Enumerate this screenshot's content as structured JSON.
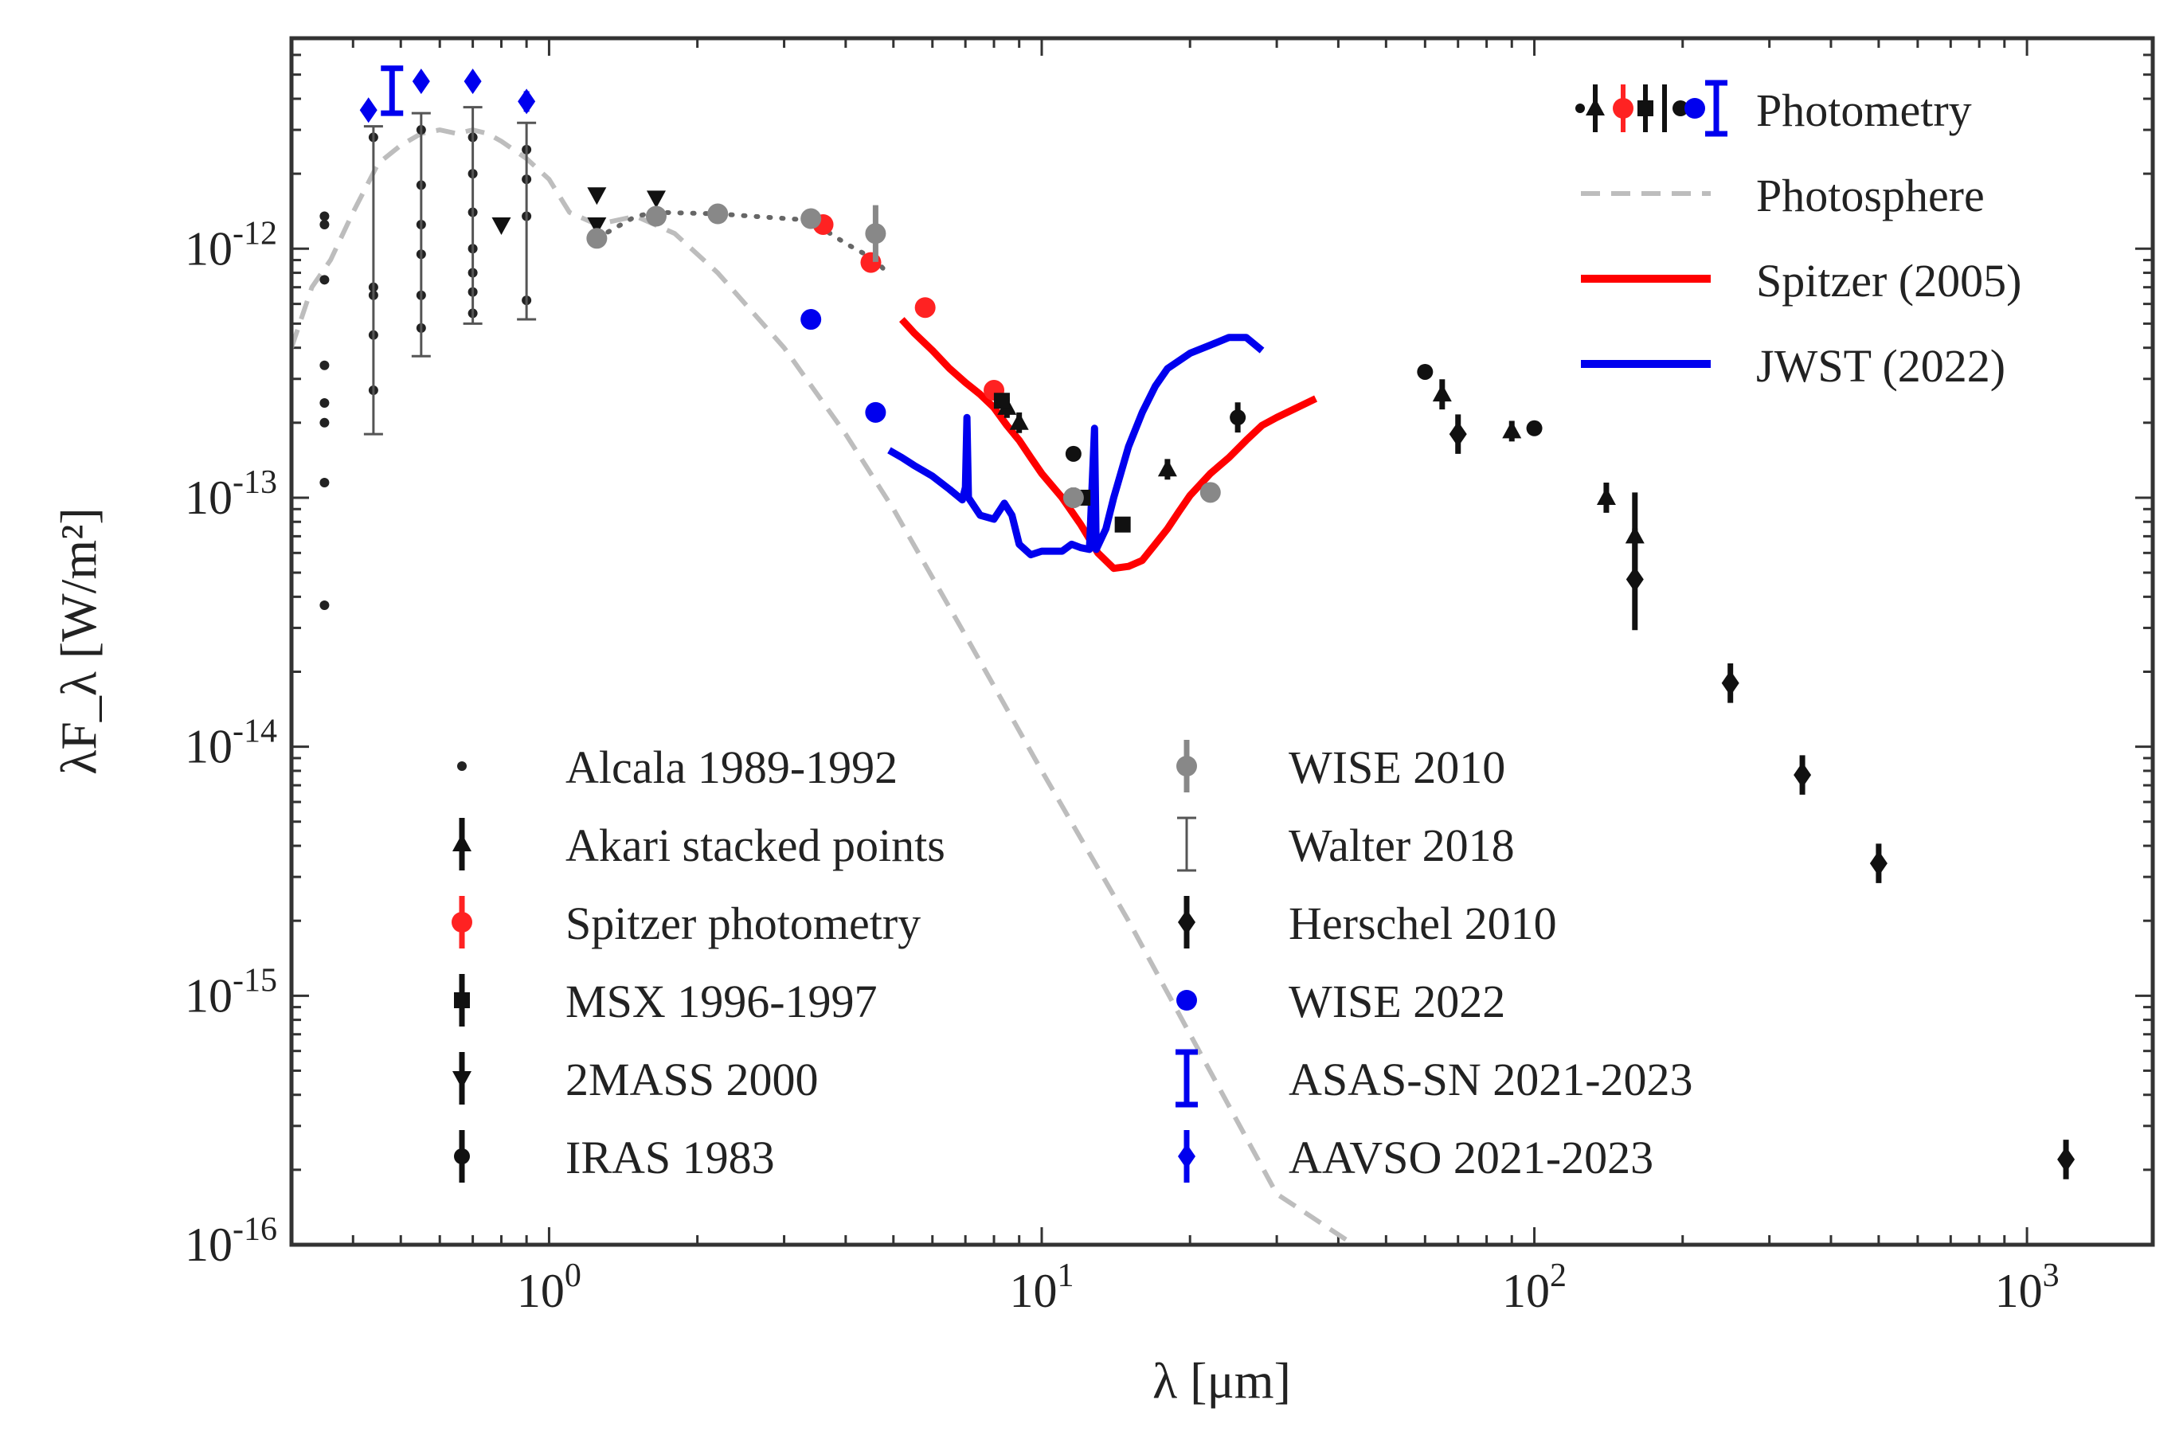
{
  "chart_data": {
    "type": "scatter",
    "xlabel": "λ [μm]",
    "ylabel": "λF_λ [W/m²]",
    "xscale": "log",
    "yscale": "log",
    "xlim": [
      0.3,
      1800
    ],
    "ylim": [
      1e-16,
      7e-12
    ],
    "x_ticks": [
      {
        "value": 1,
        "base": "10",
        "exp": "0"
      },
      {
        "value": 10,
        "base": "10",
        "exp": "1"
      },
      {
        "value": 100,
        "base": "10",
        "exp": "2"
      },
      {
        "value": 1000,
        "base": "10",
        "exp": "3"
      }
    ],
    "y_ticks": [
      {
        "value": 1e-16,
        "base": "10",
        "exp": "-16"
      },
      {
        "value": 1e-15,
        "base": "10",
        "exp": "-15"
      },
      {
        "value": 1e-14,
        "base": "10",
        "exp": "-14"
      },
      {
        "value": 1e-13,
        "base": "10",
        "exp": "-13"
      },
      {
        "value": 1e-12,
        "base": "10",
        "exp": "-12"
      }
    ],
    "upper_legend": [
      {
        "label": "Photometry",
        "style": "photometry"
      },
      {
        "label": "Photosphere",
        "color": "#bdbdbd",
        "style": "dashed"
      },
      {
        "label": "Spitzer (2005)",
        "color": "#ff0000",
        "style": "solid"
      },
      {
        "label": "JWST (2022)",
        "color": "#0000ee",
        "style": "solid"
      }
    ],
    "lines": [
      {
        "name": "Photosphere",
        "color": "#bdbdbd",
        "dash": "dashed",
        "points": [
          [
            0.3,
            4e-13
          ],
          [
            0.33,
            7e-13
          ],
          [
            0.36,
            9e-13
          ],
          [
            0.4,
            1.4e-12
          ],
          [
            0.45,
            2.2e-12
          ],
          [
            0.5,
            2.6e-12
          ],
          [
            0.55,
            2.9e-12
          ],
          [
            0.6,
            3e-12
          ],
          [
            0.65,
            2.9e-12
          ],
          [
            0.7,
            3e-12
          ],
          [
            0.75,
            2.9e-12
          ],
          [
            0.8,
            2.7e-12
          ],
          [
            0.9,
            2.3e-12
          ],
          [
            1.0,
            1.9e-12
          ],
          [
            1.1,
            1.4e-12
          ],
          [
            1.25,
            1.25e-12
          ],
          [
            1.5,
            1.35e-12
          ],
          [
            1.8,
            1.15e-12
          ],
          [
            2.2,
            8e-13
          ],
          [
            3,
            4e-13
          ],
          [
            4,
            1.8e-13
          ],
          [
            5,
            9e-14
          ],
          [
            7,
            2.8e-14
          ],
          [
            10,
            8e-15
          ],
          [
            15,
            2e-15
          ],
          [
            20,
            7e-16
          ],
          [
            30,
            1.6e-16
          ],
          [
            43,
            1e-16
          ]
        ]
      },
      {
        "name": "Spitzer (2005)",
        "color": "#ff0000",
        "dash": "solid",
        "points": [
          [
            5.2,
            5.2e-13
          ],
          [
            5.5,
            4.6e-13
          ],
          [
            6,
            3.9e-13
          ],
          [
            6.5,
            3.3e-13
          ],
          [
            7,
            2.9e-13
          ],
          [
            7.5,
            2.6e-13
          ],
          [
            8,
            2.3e-13
          ],
          [
            8.5,
            1.95e-13
          ],
          [
            9,
            1.7e-13
          ],
          [
            9.5,
            1.45e-13
          ],
          [
            10,
            1.25e-13
          ],
          [
            11,
            1e-13
          ],
          [
            12,
            7.8e-14
          ],
          [
            13,
            6e-14
          ],
          [
            14,
            5.2e-14
          ],
          [
            15,
            5.3e-14
          ],
          [
            16,
            5.6e-14
          ],
          [
            17,
            6.5e-14
          ],
          [
            18,
            7.5e-14
          ],
          [
            19,
            8.8e-14
          ],
          [
            20,
            1.02e-13
          ],
          [
            22,
            1.25e-13
          ],
          [
            24,
            1.45e-13
          ],
          [
            26,
            1.7e-13
          ],
          [
            28,
            1.95e-13
          ],
          [
            30,
            2.1e-13
          ],
          [
            33,
            2.3e-13
          ],
          [
            36,
            2.5e-13
          ]
        ]
      },
      {
        "name": "JWST (2022)",
        "color": "#0000ee",
        "dash": "solid",
        "points": [
          [
            4.9,
            1.55e-13
          ],
          [
            5.2,
            1.45e-13
          ],
          [
            5.5,
            1.35e-13
          ],
          [
            6,
            1.22e-13
          ],
          [
            6.5,
            1.08e-13
          ],
          [
            6.9,
            9.8e-14
          ],
          [
            7.0,
            1.1e-13
          ],
          [
            7.05,
            2.1e-13
          ],
          [
            7.1,
            1e-13
          ],
          [
            7.5,
            8.5e-14
          ],
          [
            8,
            8.2e-14
          ],
          [
            8.4,
            9.5e-14
          ],
          [
            8.7,
            8.5e-14
          ],
          [
            9,
            6.5e-14
          ],
          [
            9.5,
            5.9e-14
          ],
          [
            10,
            6.1e-14
          ],
          [
            11,
            6.1e-14
          ],
          [
            11.5,
            6.5e-14
          ],
          [
            12,
            6.3e-14
          ],
          [
            12.5,
            6.2e-14
          ],
          [
            12.8,
            1.9e-13
          ],
          [
            12.9,
            6.2e-14
          ],
          [
            13.5,
            7.5e-14
          ],
          [
            14,
            1e-13
          ],
          [
            15,
            1.6e-13
          ],
          [
            16,
            2.2e-13
          ],
          [
            17,
            2.8e-13
          ],
          [
            18,
            3.3e-13
          ],
          [
            20,
            3.8e-13
          ],
          [
            22,
            4.1e-13
          ],
          [
            24,
            4.4e-13
          ],
          [
            26,
            4.4e-13
          ],
          [
            28,
            3.9e-13
          ]
        ]
      },
      {
        "name": "2MASS dotted",
        "color": "#666666",
        "dash": "dotted",
        "points": [
          [
            1.25,
            1.1e-12
          ],
          [
            1.5,
            1.35e-12
          ],
          [
            1.65,
            1.4e-12
          ],
          [
            2.2,
            1.38e-12
          ],
          [
            3.4,
            1.3e-12
          ],
          [
            3.6,
            1.2e-12
          ],
          [
            4.0,
            1.05e-12
          ],
          [
            4.6,
            9e-13
          ],
          [
            4.8,
            8.2e-13
          ]
        ]
      }
    ],
    "series": [
      {
        "name": "Alcala 1989-1992",
        "marker": "dot",
        "color": "#222222",
        "points": [
          [
            0.35,
            3.7e-14
          ],
          [
            0.35,
            1.15e-13
          ],
          [
            0.35,
            2e-13
          ],
          [
            0.35,
            2.4e-13
          ],
          [
            0.35,
            3.4e-13
          ],
          [
            0.35,
            7.5e-13
          ],
          [
            0.35,
            1.25e-12
          ],
          [
            0.35,
            1.35e-12
          ],
          [
            0.44,
            2.7e-13
          ],
          [
            0.44,
            4.5e-13
          ],
          [
            0.44,
            6.5e-13
          ],
          [
            0.44,
            7e-13
          ],
          [
            0.44,
            2.8e-12
          ],
          [
            0.55,
            4.8e-13
          ],
          [
            0.55,
            6.5e-13
          ],
          [
            0.55,
            9.5e-13
          ],
          [
            0.55,
            1.25e-12
          ],
          [
            0.55,
            1.8e-12
          ],
          [
            0.55,
            3e-12
          ],
          [
            0.7,
            5.5e-13
          ],
          [
            0.7,
            6.7e-13
          ],
          [
            0.7,
            8e-13
          ],
          [
            0.7,
            1e-12
          ],
          [
            0.7,
            1.4e-12
          ],
          [
            0.7,
            2e-12
          ],
          [
            0.7,
            2.8e-12
          ],
          [
            0.9,
            6.2e-13
          ],
          [
            0.9,
            1.35e-12
          ],
          [
            0.9,
            1.9e-12
          ],
          [
            0.9,
            2.5e-12
          ]
        ]
      },
      {
        "name": "Akari stacked points",
        "marker": "triangle-up",
        "color": "#111111",
        "points": [
          [
            8.5,
            2.3e-13
          ],
          [
            9.0,
            2e-13
          ],
          [
            18.0,
            1.3e-13
          ],
          [
            65,
            2.6e-13
          ],
          [
            90,
            1.85e-13
          ],
          [
            140,
            1e-13
          ],
          [
            160,
            7e-14
          ]
        ],
        "yerr_factor": [
          1.1,
          1.1,
          1.1,
          1.15,
          1.1,
          1.15,
          1.5
        ]
      },
      {
        "name": "Spitzer photometry",
        "marker": "circle",
        "color": "#ff2222",
        "points": [
          [
            3.6,
            1.25e-12
          ],
          [
            4.5,
            8.8e-13
          ],
          [
            5.8,
            5.8e-13
          ],
          [
            8.0,
            2.7e-13
          ]
        ]
      },
      {
        "name": "MSX 1996-1997",
        "marker": "square",
        "color": "#111111",
        "points": [
          [
            8.3,
            2.45e-13
          ],
          [
            12.1,
            1e-13
          ],
          [
            14.6,
            7.8e-14
          ]
        ]
      },
      {
        "name": "2MASS 2000",
        "marker": "triangle-down",
        "color": "#111111",
        "points": [
          [
            0.8,
            1.25e-12
          ],
          [
            1.25,
            1.65e-12
          ],
          [
            1.25,
            1.25e-12
          ],
          [
            1.65,
            1.6e-12
          ]
        ]
      },
      {
        "name": "IRAS 1983",
        "marker": "filled-dot",
        "color": "#111111",
        "points": [
          [
            11.6,
            1.5e-13
          ],
          [
            25,
            2.1e-13
          ],
          [
            60,
            3.2e-13
          ],
          [
            100,
            1.9e-13
          ]
        ],
        "yerr_factor": [
          1.0,
          1.15,
          1.05,
          1.0
        ]
      },
      {
        "name": "WISE 2010",
        "marker": "circle",
        "color": "#888888",
        "points": [
          [
            1.25,
            1.1e-12
          ],
          [
            1.65,
            1.35e-12
          ],
          [
            2.2,
            1.38e-12
          ],
          [
            3.4,
            1.32e-12
          ],
          [
            4.6,
            1.15e-12
          ],
          [
            11.6,
            1e-13
          ],
          [
            22,
            1.05e-13
          ]
        ],
        "yerr_factor": [
          1.0,
          1.0,
          1.0,
          1.0,
          1.3,
          1.1,
          1.0
        ]
      },
      {
        "name": "Walter 2018",
        "marker": "none",
        "color": "#555555",
        "ranges": [
          [
            0.44,
            1.8e-13,
            3.1e-12
          ],
          [
            0.55,
            3.7e-13,
            3.5e-12
          ],
          [
            0.7,
            5e-13,
            3.7e-12
          ],
          [
            0.9,
            5.2e-13,
            3.2e-12
          ]
        ]
      },
      {
        "name": "Herschel 2010",
        "marker": "diamond",
        "color": "#111111",
        "points": [
          [
            70,
            1.8e-13
          ],
          [
            160,
            4.7e-14
          ],
          [
            250,
            1.8e-14
          ],
          [
            350,
            7.7e-15
          ],
          [
            500,
            3.4e-15
          ],
          [
            1200,
            2.2e-16
          ]
        ],
        "yerr_factor": [
          1.2,
          1.6,
          1.2,
          1.2,
          1.2,
          1.2
        ]
      },
      {
        "name": "WISE 2022",
        "marker": "circle",
        "color": "#0000ee",
        "points": [
          [
            3.4,
            5.2e-13
          ],
          [
            4.6,
            2.2e-13
          ]
        ]
      },
      {
        "name": "ASAS-SN 2021-2023",
        "marker": "errorbar-cap",
        "color": "#0000ee",
        "ranges": [
          [
            0.48,
            3.5e-12,
            5.3e-12
          ]
        ]
      },
      {
        "name": "AAVSO 2021-2023",
        "marker": "diamond",
        "color": "#0000ee",
        "points": [
          [
            0.43,
            3.6e-12
          ],
          [
            0.55,
            4.7e-12
          ],
          [
            0.7,
            4.7e-12
          ],
          [
            0.9,
            3.9e-12
          ]
        ],
        "yerr_factor": [
          1.05,
          1.05,
          1.08,
          1.1
        ]
      }
    ],
    "colors": {
      "black": "#111111",
      "photosphere": "#bdbdbd",
      "spitzer": "#ff0000",
      "jwst": "#0000ee",
      "wise2010": "#888888"
    }
  }
}
